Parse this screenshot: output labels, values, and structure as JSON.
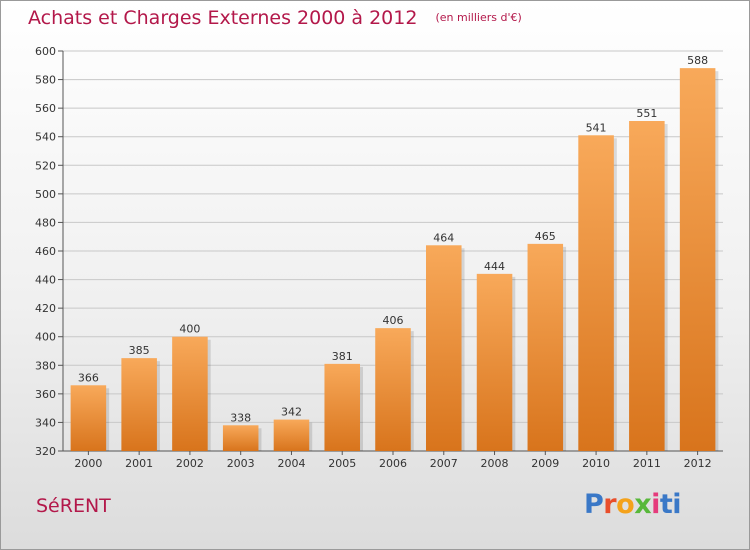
{
  "header": {
    "title": "Achats et Charges Externes 2000 à 2012",
    "subtitle": "(en milliers d'€)"
  },
  "commune": "SéRENT",
  "logo": {
    "text": "Proxiti",
    "letters": [
      "P",
      "r",
      "o",
      "x",
      "i",
      "ti"
    ]
  },
  "colors": {
    "title": "#b3184a",
    "bar_light": "#f8a95a",
    "bar_dark": "#d8741c",
    "grid": "#c8c8c8"
  },
  "chart_data": {
    "type": "bar",
    "title": "Achats et Charges Externes 2000 à 2012",
    "subtitle": "(en milliers d'€)",
    "categories": [
      "2000",
      "2001",
      "2002",
      "2003",
      "2004",
      "2005",
      "2006",
      "2007",
      "2008",
      "2009",
      "2010",
      "2011",
      "2012"
    ],
    "values": [
      366,
      385,
      400,
      338,
      342,
      381,
      406,
      464,
      444,
      465,
      541,
      551,
      588
    ],
    "ylim": [
      320,
      600
    ],
    "yticks": [
      320,
      340,
      360,
      380,
      400,
      420,
      440,
      460,
      480,
      500,
      520,
      540,
      560,
      580,
      600
    ],
    "grid": true,
    "data_labels": true,
    "xlabel": "",
    "ylabel": ""
  }
}
